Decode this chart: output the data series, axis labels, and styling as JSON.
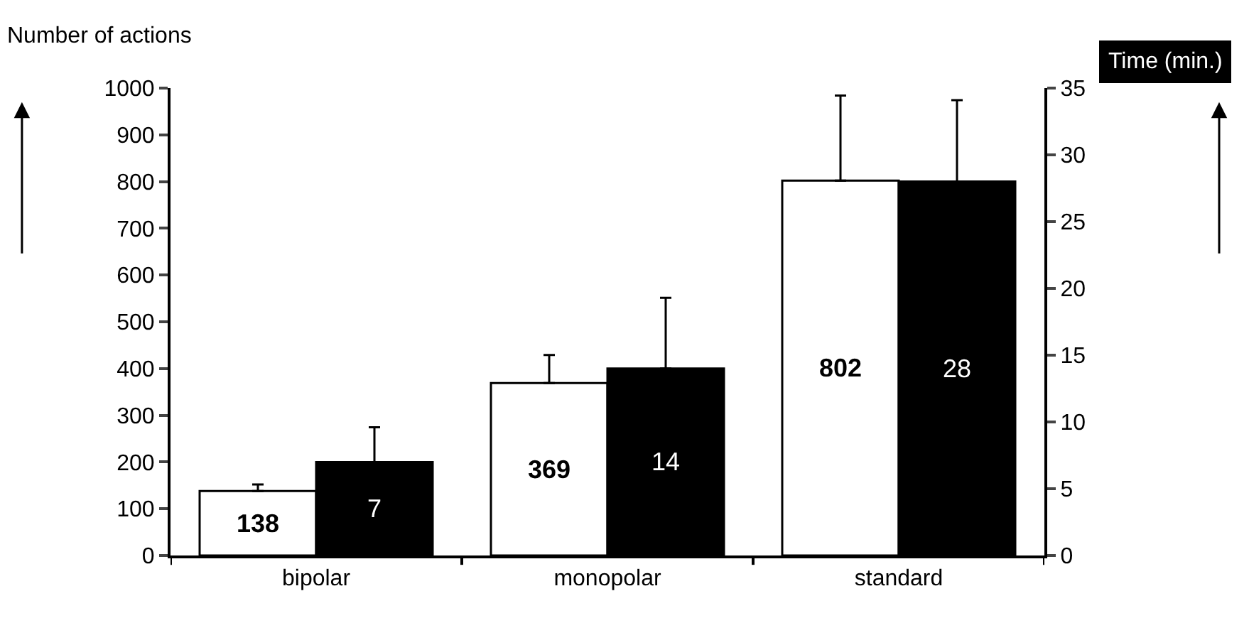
{
  "chart_data": {
    "type": "bar",
    "ylabel": "Number of actions",
    "y2label": "Time (min.)",
    "categories": [
      "bipolar",
      "monopolar",
      "standard"
    ],
    "series": [
      {
        "color": "#ffffff",
        "values": [
          138,
          369,
          802
        ],
        "errors": [
          14,
          60,
          182
        ]
      },
      {
        "color": "#000000",
        "values": [
          7,
          14,
          28
        ],
        "errors": [
          2.6,
          5.3,
          6.1
        ],
        "axis": "y2"
      }
    ],
    "ylim": [
      0,
      1000
    ],
    "yticks": [
      0,
      100,
      200,
      300,
      400,
      500,
      600,
      700,
      800,
      900,
      1000
    ],
    "y2lim": [
      0,
      35
    ],
    "y2ticks": [
      0,
      5,
      10,
      15,
      20,
      25,
      30,
      35
    ],
    "data_labels": true
  }
}
